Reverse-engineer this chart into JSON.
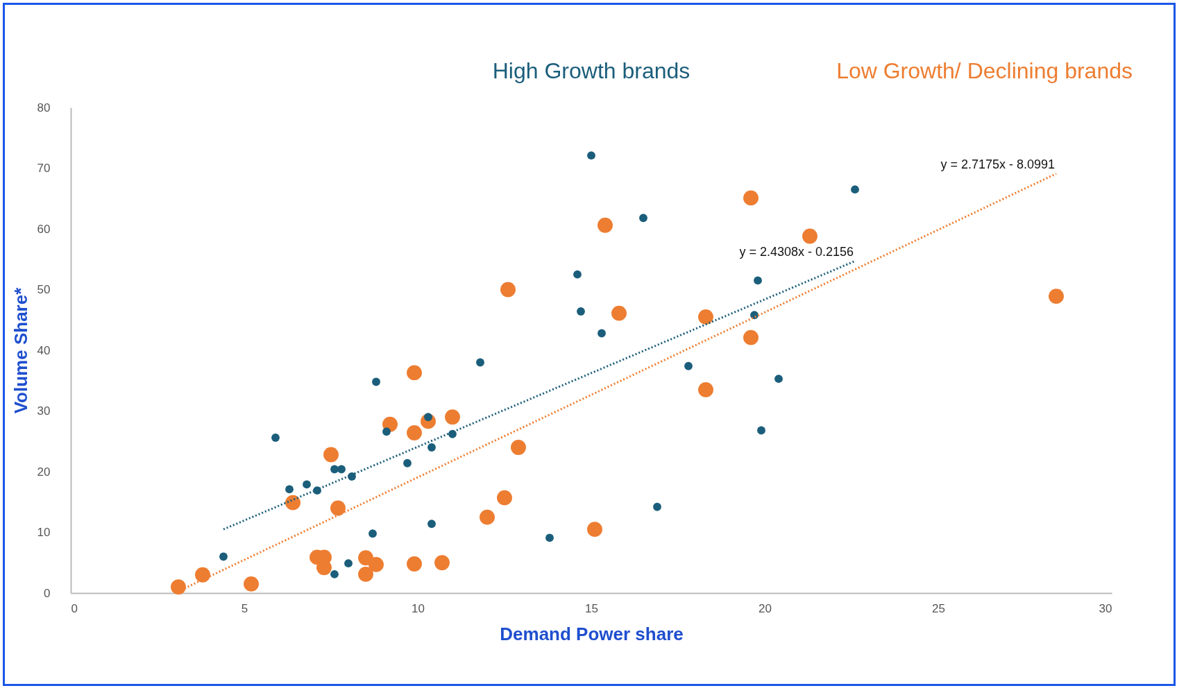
{
  "chart_data": {
    "type": "scatter",
    "xlabel": "Demand Power share",
    "ylabel": "Volume Share*",
    "xlim": [
      0,
      30
    ],
    "xticks": [
      0,
      5,
      10,
      15,
      20,
      25,
      30
    ],
    "ylim": [
      0,
      80
    ],
    "yticks": [
      0,
      10,
      20,
      30,
      40,
      50,
      60,
      70,
      80
    ],
    "grid": false,
    "legend": "top",
    "series": [
      {
        "name": "High Growth brands",
        "color": "#1b5e7b",
        "marker": "circle",
        "x": [
          15.0,
          22.6,
          16.5,
          14.6,
          19.8,
          14.7,
          19.7,
          15.3,
          11.8,
          17.8,
          20.4,
          8.8,
          5.9,
          10.3,
          9.1,
          11.0,
          10.4,
          19.9,
          9.7,
          7.6,
          7.8,
          8.1,
          6.8,
          6.3,
          7.1,
          16.9,
          10.4,
          8.7,
          13.8,
          4.4,
          8.0,
          7.6
        ],
        "values": [
          72.1,
          66.5,
          61.8,
          52.5,
          51.5,
          46.4,
          45.8,
          42.8,
          38.0,
          37.4,
          35.3,
          34.8,
          25.6,
          29.0,
          26.6,
          26.2,
          24.0,
          26.8,
          21.4,
          20.4,
          20.4,
          19.2,
          17.9,
          17.1,
          16.9,
          14.2,
          11.4,
          9.8,
          9.1,
          6.0,
          4.9,
          3.1
        ]
      },
      {
        "name": "Low Growth/ Declining brands",
        "color": "#ed7d31",
        "marker": "circle",
        "x": [
          19.6,
          15.4,
          21.3,
          12.6,
          28.4,
          15.8,
          18.3,
          19.6,
          9.9,
          18.3,
          11.0,
          10.3,
          9.2,
          9.9,
          7.5,
          12.9,
          6.4,
          7.7,
          12.5,
          12.0,
          15.1,
          7.1,
          7.3,
          7.3,
          8.5,
          8.8,
          8.5,
          9.9,
          10.7,
          3.8,
          3.1,
          5.2
        ],
        "values": [
          65.1,
          60.6,
          58.8,
          50.0,
          48.9,
          46.1,
          45.5,
          42.1,
          36.3,
          33.5,
          29.0,
          28.3,
          27.8,
          26.4,
          22.8,
          24.0,
          14.9,
          14.0,
          15.7,
          12.5,
          10.5,
          5.9,
          5.9,
          4.2,
          5.8,
          4.7,
          3.1,
          4.8,
          5.0,
          3.0,
          1.0,
          1.5
        ]
      },
      {
        "type": "line",
        "color": "#1b5e7b",
        "line_style": "dotted",
        "x": [
          4.4,
          22.6
        ],
        "values": [
          10.5,
          54.7
        ]
      },
      {
        "type": "line",
        "color": "#ed7d31",
        "line_style": "dotted",
        "x": [
          3.1,
          28.4
        ],
        "values": [
          0.3,
          69.1
        ]
      }
    ],
    "annotations": [
      "y = 2.4308x - 0.2156",
      "y = 2.7175x - 8.0991"
    ]
  }
}
